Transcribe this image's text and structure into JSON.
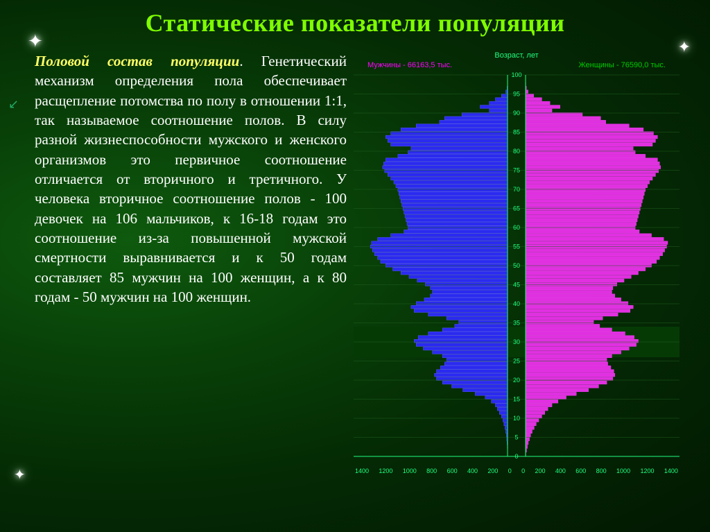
{
  "title": {
    "text": "Статические показатели популяции",
    "color": "#7fff00"
  },
  "body": {
    "lead": "Половой состав популяции",
    "lead_color": "#ffff66",
    "text": ". Генетический механизм определения пола обеспечивает расщепление потомства по полу в отношении 1:1, так называемое соотношение полов. В силу разной жизнеспособности мужского и женского организмов это первичное соотношение отличается от вторичного и третичного. У человека вторичное соотношение полов - 100 девочек на 106 мальчиков, к 16-18 годам это соотношение из-за повышенной мужской смертности выравнивается и к 50 годам составляет 85 мужчин на 100 женщин, а к 80 годам - 50 мужчин на 100 женщин."
  },
  "chart": {
    "type": "population-pyramid",
    "age_axis_title": "Возраст, лет",
    "male_label": "Мужчины - 66163,5 тыс.",
    "female_label": "Женщины - 76590,0 тыс.",
    "male_color": "#ff00ff",
    "female_color": "#00cc00",
    "bar_fill_male": "#2a2af0",
    "bar_fill_female": "#e030e0",
    "bar_edge": "#ff40ff",
    "bar_edge_male": "#6060ff",
    "grid_color": "#206020",
    "axis_text_color": "#20ff80",
    "age_ticks": [
      100,
      95,
      90,
      85,
      80,
      75,
      70,
      65,
      60,
      55,
      50,
      45,
      40,
      35,
      30,
      25,
      20,
      15,
      10,
      5,
      0
    ],
    "x_max": 1400,
    "x_ticks": [
      -1400,
      -1200,
      -1000,
      -800,
      -600,
      -400,
      -200,
      0,
      0,
      200,
      400,
      600,
      800,
      1000,
      1200,
      1400
    ],
    "male_values": [
      0,
      0,
      2,
      5,
      18,
      60,
      120,
      180,
      270,
      180,
      450,
      620,
      670,
      900,
      1050,
      1150,
      1200,
      1180,
      1150,
      950,
      980,
      1080,
      1200,
      1220,
      1230,
      1210,
      1180,
      1150,
      1120,
      1100,
      1080,
      1070,
      1060,
      1050,
      1040,
      1030,
      1020,
      1010,
      1000,
      990,
      980,
      1020,
      1150,
      1280,
      1340,
      1350,
      1330,
      1310,
      1280,
      1250,
      1200,
      1130,
      1050,
      970,
      890,
      810,
      760,
      740,
      760,
      820,
      900,
      950,
      920,
      780,
      600,
      480,
      520,
      640,
      780,
      880,
      920,
      900,
      830,
      740,
      640,
      600,
      620,
      660,
      700,
      720,
      700,
      640,
      550,
      440,
      320,
      220,
      160,
      120,
      100,
      80,
      60,
      45,
      35,
      25,
      18,
      12,
      8,
      5,
      3,
      1,
      0
    ],
    "female_values": [
      0,
      0,
      3,
      8,
      25,
      80,
      160,
      240,
      340,
      260,
      560,
      740,
      790,
      1020,
      1160,
      1260,
      1300,
      1280,
      1250,
      1060,
      1080,
      1180,
      1300,
      1320,
      1330,
      1310,
      1280,
      1250,
      1220,
      1200,
      1180,
      1170,
      1160,
      1150,
      1140,
      1130,
      1120,
      1110,
      1100,
      1090,
      1080,
      1120,
      1240,
      1360,
      1400,
      1390,
      1370,
      1350,
      1320,
      1290,
      1240,
      1180,
      1110,
      1040,
      970,
      900,
      860,
      850,
      880,
      940,
      1010,
      1060,
      1030,
      910,
      760,
      670,
      730,
      850,
      980,
      1070,
      1110,
      1090,
      1020,
      940,
      850,
      800,
      810,
      840,
      870,
      880,
      860,
      800,
      720,
      620,
      500,
      400,
      320,
      260,
      220,
      190,
      160,
      130,
      105,
      85,
      65,
      50,
      38,
      27,
      18,
      10,
      3
    ]
  }
}
